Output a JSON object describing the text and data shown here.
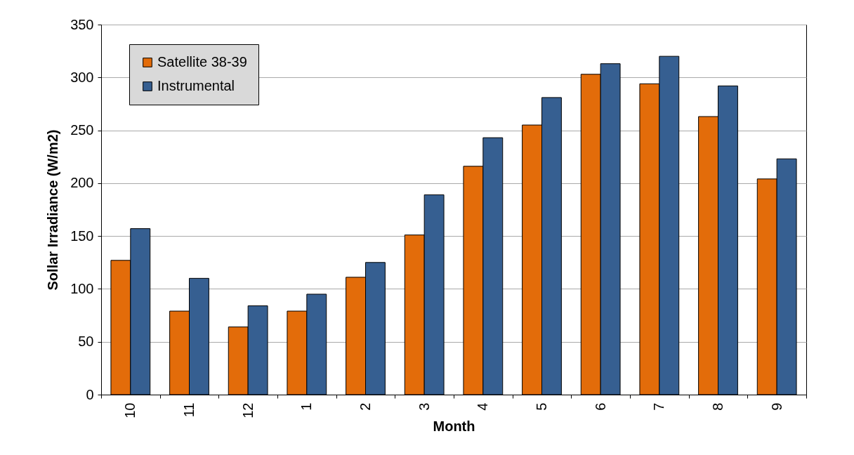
{
  "chart_data": {
    "type": "bar",
    "xlabel": "Month",
    "ylabel": "Sollar Irradiance (W/m2)",
    "categories": [
      "10",
      "11",
      "12",
      "1",
      "2",
      "3",
      "4",
      "5",
      "6",
      "7",
      "8",
      "9"
    ],
    "series": [
      {
        "name": "Satellite 38-39",
        "color": "#e36c0a",
        "values": [
          127,
          79,
          64,
          79,
          111,
          151,
          216,
          255,
          303,
          294,
          263,
          204
        ]
      },
      {
        "name": "Instrumental",
        "color": "#365f91",
        "values": [
          157,
          110,
          84,
          95,
          125,
          189,
          243,
          281,
          313,
          320,
          292,
          223
        ]
      }
    ],
    "ylim": [
      0,
      350
    ],
    "yticks": [
      0,
      50,
      100,
      150,
      200,
      250,
      300,
      350
    ],
    "grid": "y",
    "legend": "top left"
  }
}
